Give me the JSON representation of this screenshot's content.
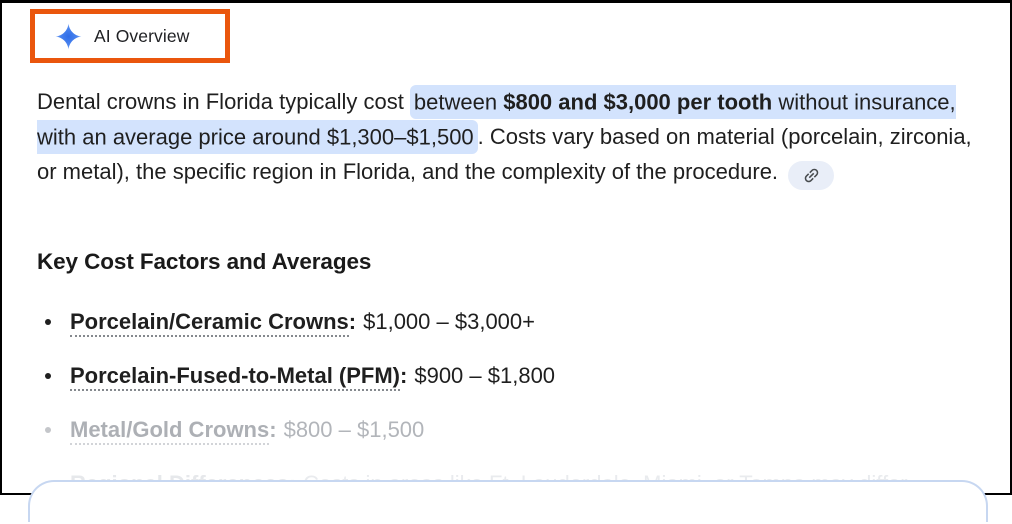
{
  "colors": {
    "annotation_orange": "#EA560D",
    "highlight_blue": "#D3E3FD",
    "sparkle_blue": "#4285F4",
    "card_border": "#C7D7F1",
    "body_text": "#1F1F1F"
  },
  "header": {
    "title": "AI Overview",
    "icon": "gemini-sparkle-icon"
  },
  "paragraph": {
    "segments": [
      {
        "text": "Dental crowns in Florida typically cost ",
        "highlight": false,
        "bold": false
      },
      {
        "text": "between ",
        "highlight": true,
        "bold": false
      },
      {
        "text": "$800 and $3,000 per tooth",
        "highlight": true,
        "bold": true
      },
      {
        "text": " without insurance, with an average price around $1,300–$1,500",
        "highlight": true,
        "bold": false
      },
      {
        "text": ". Costs vary based on material (porcelain, zirconia, or metal), the specific region in Florida, and the complexity of the procedure.",
        "highlight": false,
        "bold": false
      }
    ],
    "citation_icon": "link-icon"
  },
  "section": {
    "heading": "Key Cost Factors and Averages",
    "bullets": [
      {
        "term": "Porcelain/Ceramic Crowns",
        "value": "$1,000 – $3,000+",
        "fade": "none"
      },
      {
        "term": "Porcelain-Fused-to-Metal (PFM)",
        "value": "$900 – $1,800",
        "fade": "none"
      },
      {
        "term": "Metal/Gold Crowns",
        "value": "$800 – $1,500",
        "fade": "partial"
      },
      {
        "term": "Regional Differences",
        "value": "Costs in areas like Ft. Lauderdale, Miami, or Tampa may differ",
        "fade": "full"
      }
    ]
  }
}
